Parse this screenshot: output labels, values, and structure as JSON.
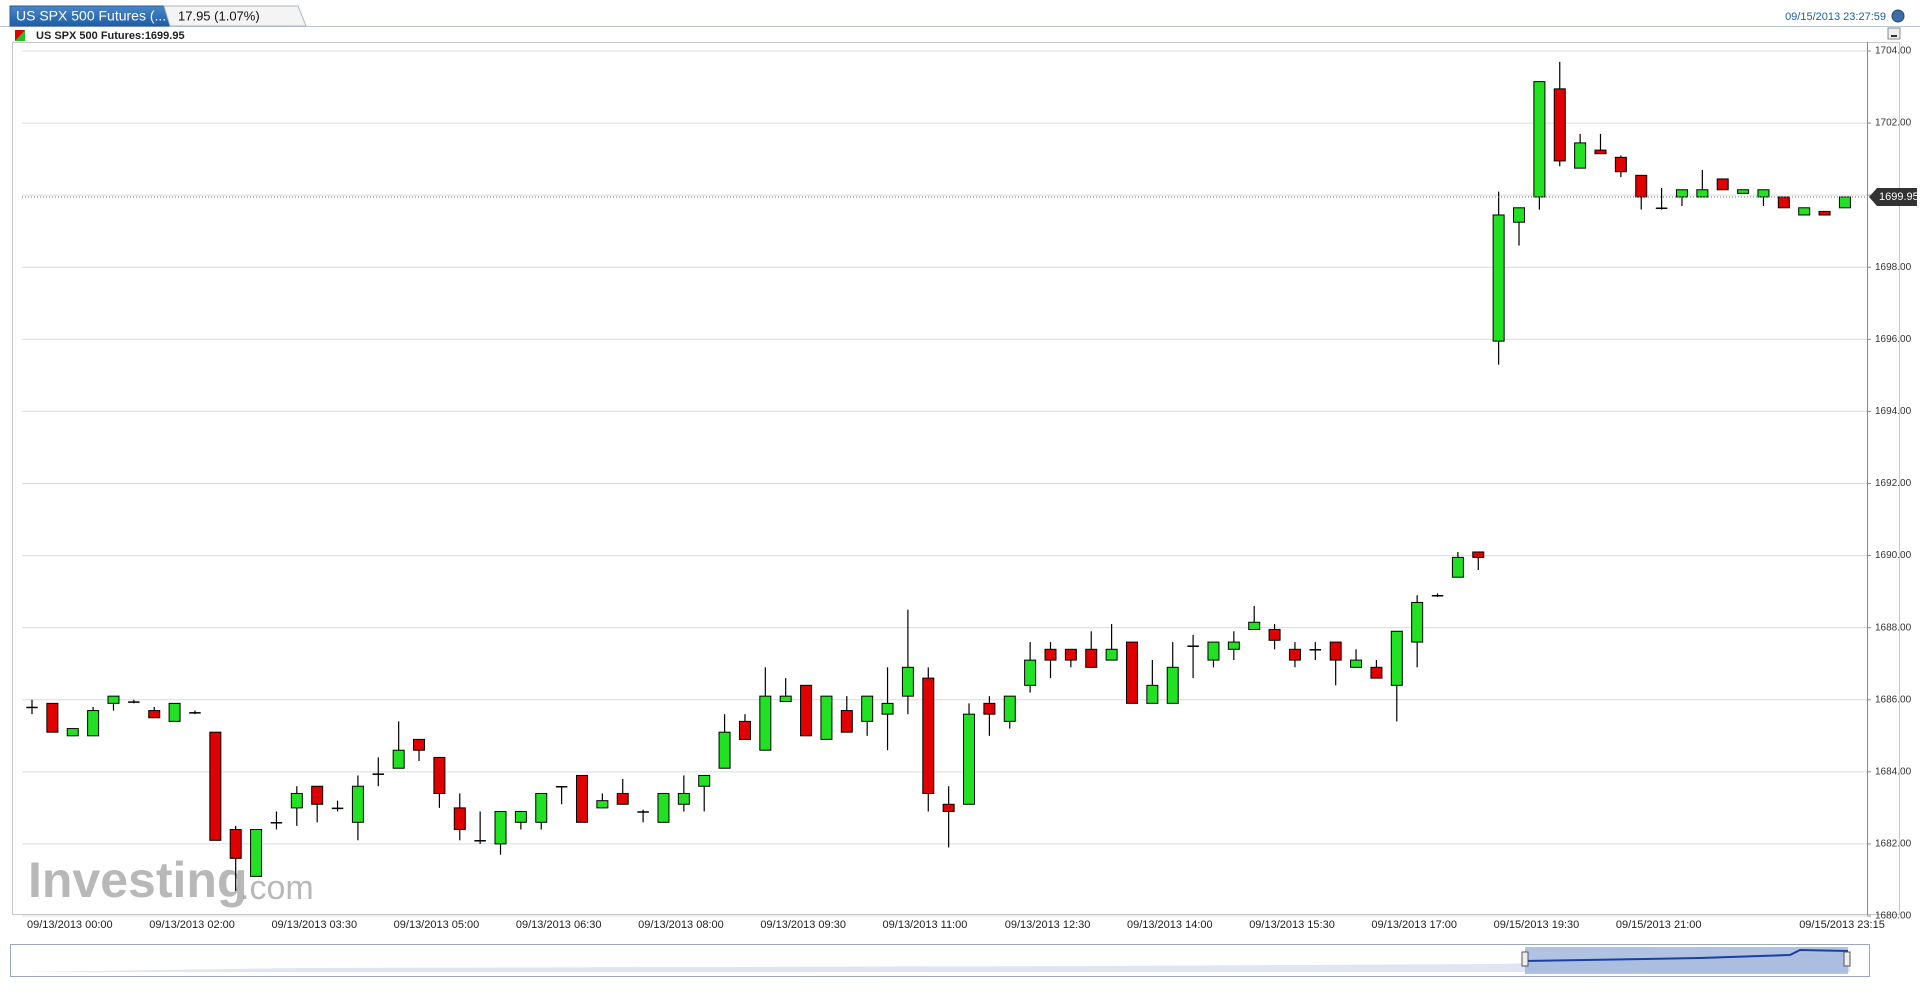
{
  "header": {
    "tab_title": "US SPX 500 Futures (...",
    "change": "17.95 (1.07%)",
    "timestamp": "09/15/2013 23:27:59"
  },
  "watermark": {
    "brand": "Investing",
    "suffix": ".com"
  },
  "chart_data": {
    "type": "candlestick",
    "legend_label": "US SPX 500 Futures:1699.95",
    "last_price": 1699.95,
    "up_color": "#22e022",
    "down_color": "#e00000",
    "ylim": [
      1680,
      1704
    ],
    "yticks": [
      {
        "value": 1680,
        "label": "1680.00"
      },
      {
        "value": 1682,
        "label": "1682.00"
      },
      {
        "value": 1684,
        "label": "1684.00"
      },
      {
        "value": 1686,
        "label": "1686.00"
      },
      {
        "value": 1688,
        "label": "1688.00"
      },
      {
        "value": 1690,
        "label": "1690.00"
      },
      {
        "value": 1692,
        "label": "1692.00"
      },
      {
        "value": 1694,
        "label": "1694.00"
      },
      {
        "value": 1696,
        "label": "1696.00"
      },
      {
        "value": 1698,
        "label": "1698.00"
      },
      {
        "value": 1700,
        "label": "1700.00"
      },
      {
        "value": 1702,
        "label": "1702.00"
      },
      {
        "value": 1704,
        "label": "1704.00"
      }
    ],
    "grid": true,
    "categories": [
      "09/13/2013 00:00",
      null,
      null,
      null,
      null,
      null,
      "09/13/2013 02:00",
      null,
      null,
      null,
      null,
      null,
      "09/13/2013 03:30",
      null,
      null,
      null,
      null,
      null,
      "09/13/2013 05:00",
      null,
      null,
      null,
      null,
      null,
      "09/13/2013 06:30",
      null,
      null,
      null,
      null,
      null,
      "09/13/2013 08:00",
      null,
      null,
      null,
      null,
      null,
      "09/13/2013 09:30",
      null,
      null,
      null,
      null,
      null,
      "09/13/2013 11:00",
      null,
      null,
      null,
      null,
      null,
      "09/13/2013 12:30",
      null,
      null,
      null,
      null,
      null,
      "09/13/2013 14:00",
      null,
      null,
      null,
      null,
      null,
      "09/13/2013 15:30",
      null,
      null,
      null,
      null,
      null,
      "09/13/2013 17:00",
      null,
      null,
      null,
      null,
      null,
      "09/15/2013 19:30",
      null,
      null,
      null,
      null,
      null,
      "09/15/2013 21:00",
      null,
      null,
      null,
      null,
      null,
      null,
      null,
      null,
      "09/15/2013 23:15",
      null,
      null
    ],
    "open": [
      1685.8,
      1685.9,
      1685.0,
      1685.0,
      1685.9,
      1685.95,
      1685.7,
      1685.4,
      1685.65,
      1685.1,
      1682.4,
      1681.1,
      1682.6,
      1683.0,
      1683.6,
      1683.0,
      1682.6,
      1683.95,
      1684.1,
      1684.9,
      1684.4,
      1683.0,
      1682.1,
      1682.0,
      1682.6,
      1682.6,
      1683.6,
      1683.9,
      1683.0,
      1683.4,
      1682.9,
      1682.6,
      1683.1,
      1683.6,
      1684.1,
      1685.4,
      1684.6,
      1685.95,
      1686.4,
      1684.9,
      1685.7,
      1685.4,
      1685.6,
      1686.1,
      1686.6,
      1683.1,
      1683.1,
      1685.9,
      1685.4,
      1686.4,
      1687.4,
      1687.4,
      1687.4,
      1687.1,
      1687.6,
      1685.9,
      1685.9,
      1687.5,
      1687.1,
      1687.4,
      1687.95,
      1687.95,
      1687.4,
      1687.4,
      1687.6,
      1686.9,
      1686.9,
      1686.4,
      1687.6,
      1688.9,
      1689.4,
      1690.1,
      1695.95,
      1699.25,
      1699.95,
      1702.95,
      1700.75,
      1701.25,
      1701.05,
      1700.55,
      1699.65,
      1699.95,
      1699.95,
      1700.45,
      1700.05,
      1699.95,
      1699.95,
      1699.45,
      1699.55,
      1699.65
    ],
    "high": [
      1686.0,
      1685.9,
      1685.2,
      1685.8,
      1686.1,
      1686.0,
      1685.8,
      1685.9,
      1685.7,
      1685.1,
      1682.5,
      1682.4,
      1682.9,
      1683.6,
      1683.6,
      1683.2,
      1683.9,
      1684.4,
      1685.4,
      1684.9,
      1684.4,
      1683.4,
      1682.9,
      1682.9,
      1682.9,
      1683.4,
      1683.6,
      1683.9,
      1683.4,
      1683.8,
      1682.95,
      1683.4,
      1683.9,
      1683.9,
      1685.6,
      1685.6,
      1686.9,
      1686.6,
      1686.4,
      1686.1,
      1686.1,
      1686.1,
      1686.9,
      1688.5,
      1686.9,
      1683.6,
      1685.9,
      1686.1,
      1686.1,
      1687.6,
      1687.6,
      1687.4,
      1687.9,
      1688.1,
      1687.6,
      1687.1,
      1687.6,
      1687.8,
      1687.6,
      1687.9,
      1688.6,
      1688.1,
      1687.6,
      1687.6,
      1687.6,
      1687.4,
      1687.1,
      1687.9,
      1688.9,
      1688.95,
      1690.1,
      1690.1,
      1700.1,
      1699.65,
      1703.15,
      1703.7,
      1701.7,
      1701.7,
      1701.1,
      1700.55,
      1700.2,
      1700.15,
      1700.7,
      1700.45,
      1700.15,
      1700.15,
      1699.95,
      1699.65,
      1699.55,
      1699.95
    ],
    "low": [
      1685.6,
      1685.1,
      1685.0,
      1685.0,
      1685.7,
      1685.9,
      1685.5,
      1685.4,
      1685.6,
      1682.1,
      1680.7,
      1681.1,
      1682.4,
      1682.5,
      1682.6,
      1682.9,
      1682.1,
      1683.6,
      1684.1,
      1684.3,
      1683.0,
      1682.1,
      1682.0,
      1681.7,
      1682.4,
      1682.4,
      1683.1,
      1682.6,
      1683.0,
      1683.1,
      1682.6,
      1682.6,
      1682.9,
      1682.9,
      1684.1,
      1684.9,
      1684.6,
      1685.95,
      1685.0,
      1684.9,
      1685.1,
      1685.0,
      1684.6,
      1685.6,
      1682.9,
      1681.9,
      1683.1,
      1685.0,
      1685.2,
      1686.2,
      1686.6,
      1686.9,
      1686.9,
      1687.1,
      1685.9,
      1685.9,
      1685.9,
      1686.6,
      1686.9,
      1687.1,
      1687.95,
      1687.4,
      1686.9,
      1687.1,
      1686.4,
      1686.9,
      1686.6,
      1685.4,
      1686.9,
      1688.85,
      1689.4,
      1689.6,
      1695.3,
      1698.6,
      1699.6,
      1700.8,
      1700.75,
      1701.15,
      1700.5,
      1699.6,
      1699.6,
      1699.7,
      1699.95,
      1700.15,
      1700.05,
      1699.7,
      1699.65,
      1699.45,
      1699.45,
      1699.65
    ],
    "close": [
      1685.8,
      1685.1,
      1685.2,
      1685.7,
      1686.1,
      1685.95,
      1685.5,
      1685.9,
      1685.65,
      1682.1,
      1681.6,
      1682.4,
      1682.6,
      1683.4,
      1683.1,
      1683.0,
      1683.6,
      1683.95,
      1684.6,
      1684.6,
      1683.4,
      1682.4,
      1682.1,
      1682.9,
      1682.9,
      1683.4,
      1683.6,
      1682.6,
      1683.2,
      1683.1,
      1682.9,
      1683.4,
      1683.4,
      1683.9,
      1685.1,
      1684.9,
      1686.1,
      1686.1,
      1685.0,
      1686.1,
      1685.1,
      1686.1,
      1685.9,
      1686.9,
      1683.4,
      1682.9,
      1685.6,
      1685.6,
      1686.1,
      1687.1,
      1687.1,
      1687.1,
      1686.9,
      1687.4,
      1685.9,
      1686.4,
      1686.9,
      1687.5,
      1687.6,
      1687.6,
      1688.15,
      1687.65,
      1687.1,
      1687.4,
      1687.1,
      1687.1,
      1686.6,
      1687.9,
      1688.7,
      1688.9,
      1689.95,
      1689.95,
      1699.45,
      1699.65,
      1703.15,
      1700.95,
      1701.45,
      1701.15,
      1700.65,
      1699.95,
      1699.65,
      1700.15,
      1700.15,
      1700.15,
      1700.15,
      1700.15,
      1699.65,
      1699.65,
      1699.45,
      1699.95
    ]
  }
}
